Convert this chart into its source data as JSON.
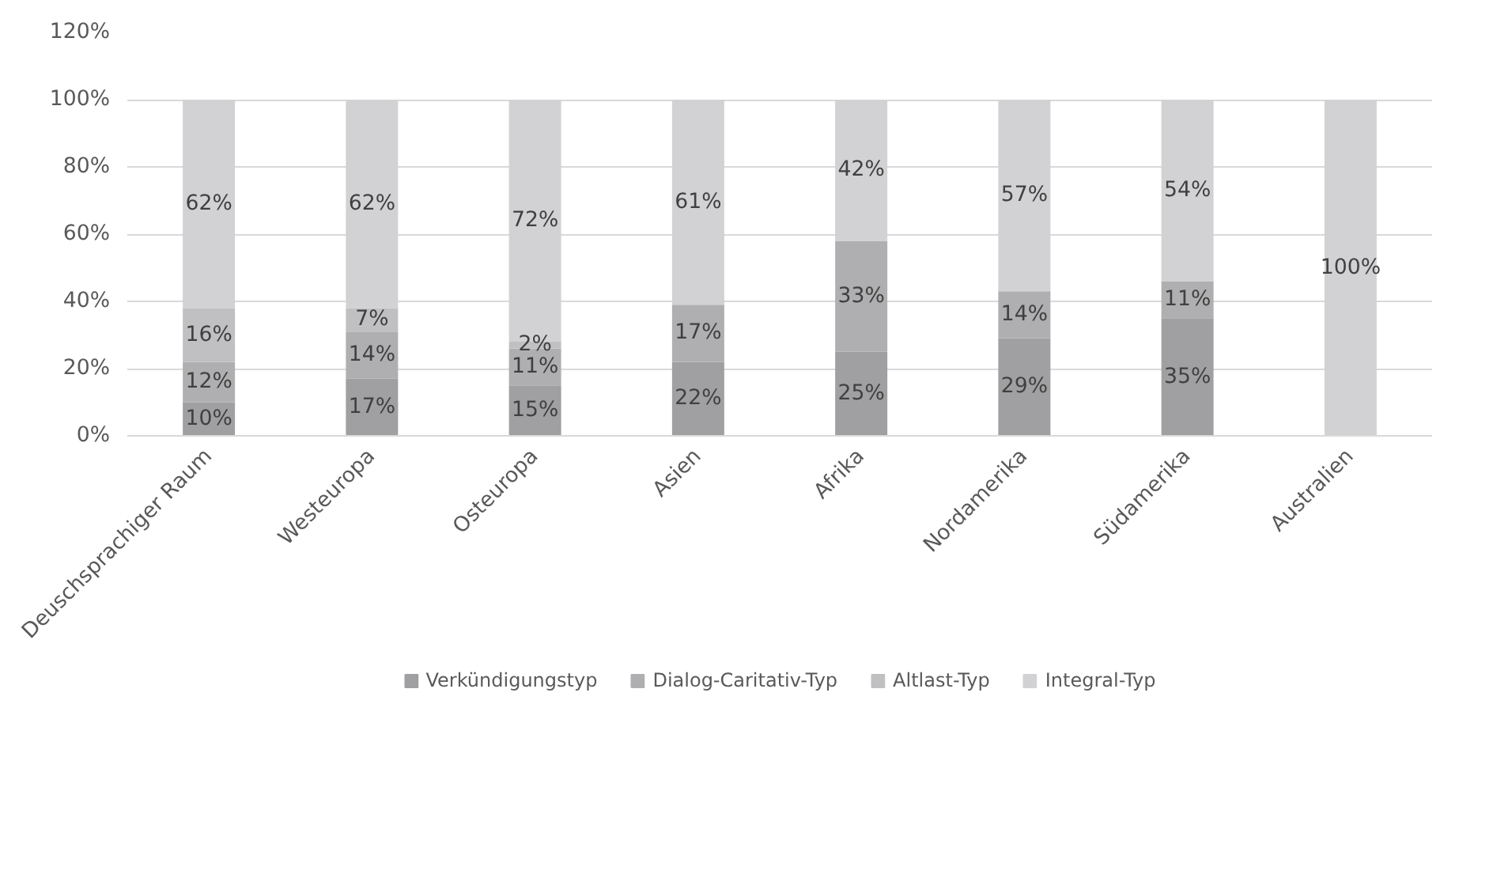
{
  "chart_data": {
    "type": "bar",
    "stacked": true,
    "categories": [
      "Deuschsprachiger Raum",
      "Westeuropa",
      "Osteuropa",
      "Asien",
      "Afrika",
      "Nordamerika",
      "Südamerika",
      "Australien"
    ],
    "series": [
      {
        "name": "Verkündigungstyp",
        "color": "#a0a0a2",
        "values": [
          10,
          17,
          15,
          22,
          25,
          29,
          35,
          null
        ],
        "value_labels": [
          "10%",
          "17%",
          "15%",
          "22%",
          "25%",
          "29%",
          "35%",
          null
        ]
      },
      {
        "name": "Dialog-Caritativ-Typ",
        "color": "#afafb1",
        "values": [
          12,
          14,
          11,
          17,
          33,
          14,
          11,
          null
        ],
        "value_labels": [
          "12%",
          "14%",
          "11%",
          "17%",
          "33%",
          "14%",
          "11%",
          null
        ]
      },
      {
        "name": "Altlast-Typ",
        "color": "#c0c0c2",
        "values": [
          16,
          7,
          2,
          null,
          null,
          null,
          null,
          null
        ],
        "value_labels": [
          "16%",
          "7%",
          "2%",
          null,
          null,
          null,
          null,
          null
        ]
      },
      {
        "name": "Integral-Typ",
        "color": "#d2d2d4",
        "values": [
          62,
          62,
          72,
          61,
          42,
          57,
          54,
          100
        ],
        "value_labels": [
          "62%",
          "62%",
          "72%",
          "61%",
          "42%",
          "57%",
          "54%",
          "100%"
        ]
      }
    ],
    "ylim": [
      0,
      120
    ],
    "yticks": [
      {
        "value": 0,
        "label": "0%"
      },
      {
        "value": 20,
        "label": "20%"
      },
      {
        "value": 40,
        "label": "40%"
      },
      {
        "value": 60,
        "label": "60%"
      },
      {
        "value": 80,
        "label": "80%"
      },
      {
        "value": 100,
        "label": "100%"
      },
      {
        "value": 120,
        "label": "120%"
      }
    ],
    "grid": "y",
    "legend": "bottom"
  }
}
